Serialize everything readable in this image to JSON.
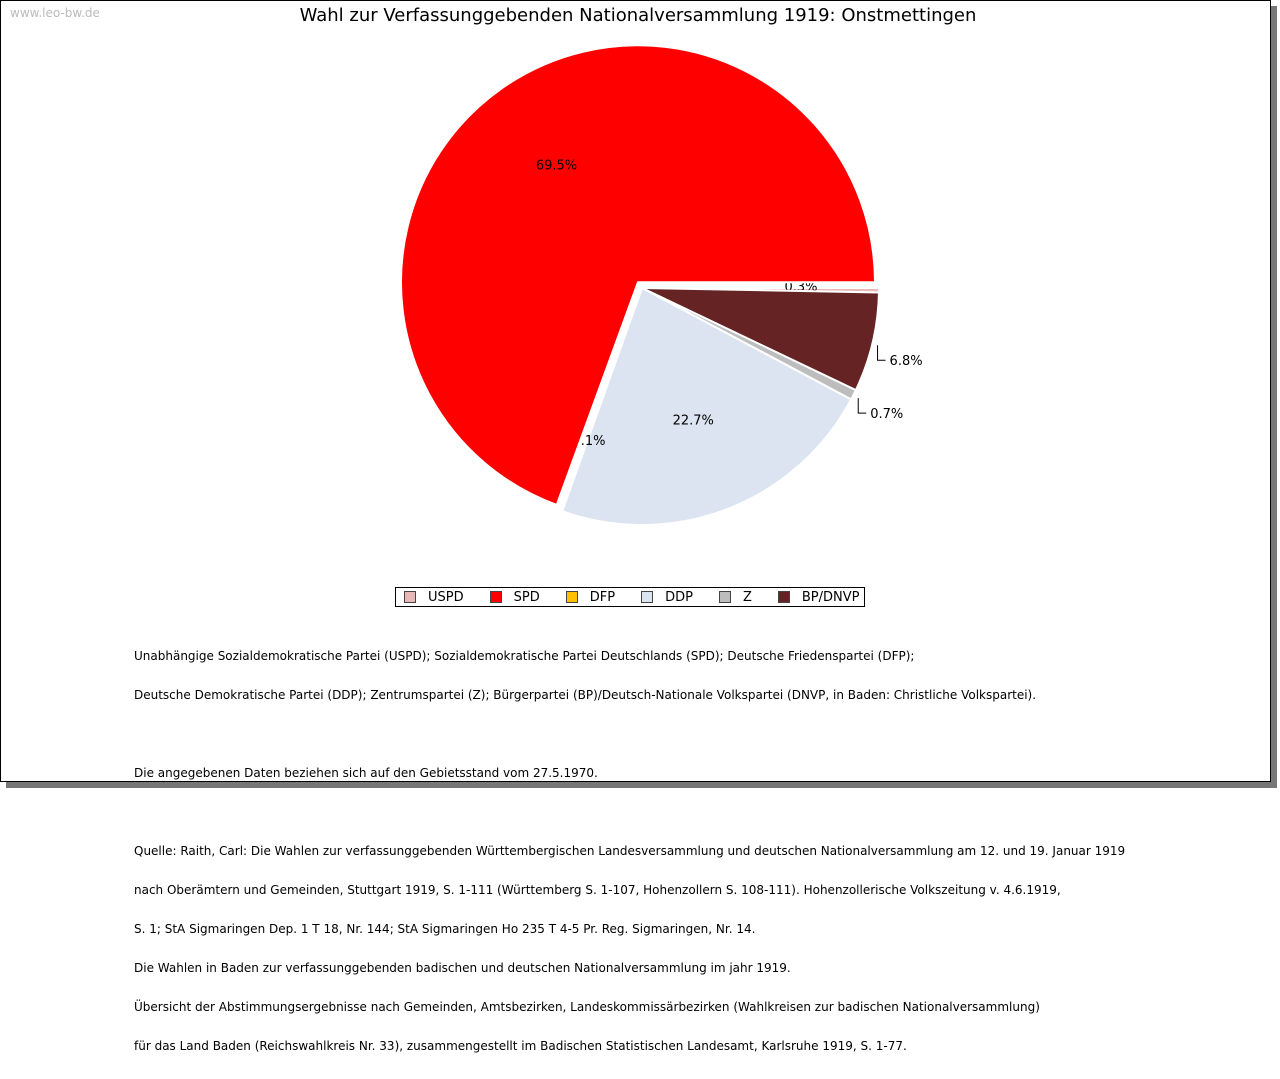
{
  "watermark": "www.leo-bw.de",
  "chart_data": {
    "type": "pie",
    "title": "Wahl zur Verfassunggebenden Nationalversammlung 1919: Onstmettingen",
    "legend_position": "bottom",
    "slices": [
      {
        "name": "USPD",
        "value": 0.3,
        "label": "0.3%",
        "color": "#e8b8b8"
      },
      {
        "name": "SPD",
        "value": 69.5,
        "label": "69.5%",
        "color": "#ff0000"
      },
      {
        "name": "DFP",
        "value": 0.1,
        "label": "0.1%",
        "color": "#ffc000"
      },
      {
        "name": "DDP",
        "value": 22.7,
        "label": "22.7%",
        "color": "#dbe4f0"
      },
      {
        "name": "Z",
        "value": 0.7,
        "label": "0.7%",
        "color": "#bdbdbd"
      },
      {
        "name": "BP/DNVP",
        "value": 6.8,
        "label": "6.8%",
        "color": "#652323"
      }
    ]
  },
  "notes": {
    "parties": [
      "Unabhängige Sozialdemokratische Partei (USPD); Sozialdemokratische Partei Deutschlands (SPD); Deutsche Friedenspartei (DFP);",
      "Deutsche Demokratische Partei (DDP); Zentrumspartei (Z); Bürgerpartei (BP)/Deutsch-Nationale Volkspartei (DNVP, in Baden: Christliche Volkspartei)."
    ],
    "territory": "Die angegebenen Daten beziehen sich auf den Gebietsstand vom 27.5.1970.",
    "source": [
      "Quelle: Raith, Carl: Die Wahlen zur verfassunggebenden Württembergischen Landesversammlung und deutschen Nationalversammlung am 12. und 19. Januar 1919",
      "nach Oberämtern und Gemeinden, Stuttgart 1919, S. 1-111 (Württemberg S. 1-107, Hohenzollern S. 108-111). Hohenzollerische Volkszeitung v. 4.6.1919,",
      "S. 1; StA Sigmaringen Dep. 1 T 18, Nr. 144; StA Sigmaringen Ho 235 T 4-5 Pr. Reg. Sigmaringen, Nr. 14.",
      "Die Wahlen in Baden zur verfassunggebenden badischen und deutschen Nationalversammlung im jahr 1919.",
      "Übersicht der Abstimmungsergebnisse nach Gemeinden, Amtsbezirken, Landeskommissärbezirken (Wahlkreisen zur badischen Nationalversammlung)",
      "für das Land Baden (Reichswahlkreis Nr. 33), zusammengestellt im Badischen Statistischen Landesamt, Karlsruhe 1919, S. 1-77."
    ]
  }
}
